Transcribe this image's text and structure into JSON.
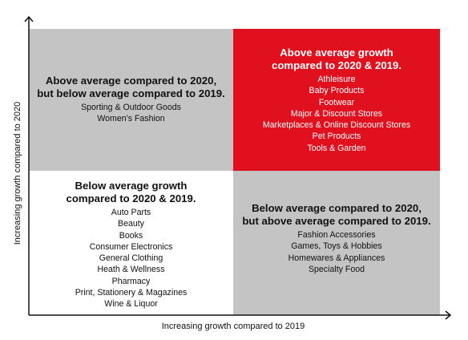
{
  "axes": {
    "x_label": "Increasing growth compared to 2019",
    "y_label": "Increasing growth compared to 2020"
  },
  "colors": {
    "grey_quadrant": "#c4c4c4",
    "red_quadrant": "#e0101e",
    "white_quadrant": "#ffffff",
    "axis": "#111111"
  },
  "quadrants": {
    "top_left": {
      "title": [
        "Above average compared to 2020,",
        "but below average compared to 2019."
      ],
      "items": [
        "Sporting & Outdoor Goods",
        "Women's Fashion"
      ]
    },
    "top_right": {
      "title": [
        "Above average growth",
        "compared to 2020 & 2019."
      ],
      "items": [
        "Athleisure",
        "Baby Products",
        "Footwear",
        "Major & Discount Stores",
        "Marketplaces & Online Discount Stores",
        "Pet Products",
        "Tools & Garden"
      ]
    },
    "bottom_left": {
      "title": [
        "Below average growth",
        "compared to 2020 & 2019."
      ],
      "items": [
        "Auto Parts",
        "Beauty",
        "Books",
        "Consumer Electronics",
        "General Clothing",
        "Heath & Wellness",
        "Pharmacy",
        "Print, Stationery & Magazines",
        "Wine & Liquor"
      ]
    },
    "bottom_right": {
      "title": [
        "Below average compared to 2020,",
        "but above average compared to 2019."
      ],
      "items": [
        "Fashion Accessories",
        "Games, Toys & Hobbies",
        "Homewares & Appliances",
        "Specialty Food"
      ]
    }
  }
}
